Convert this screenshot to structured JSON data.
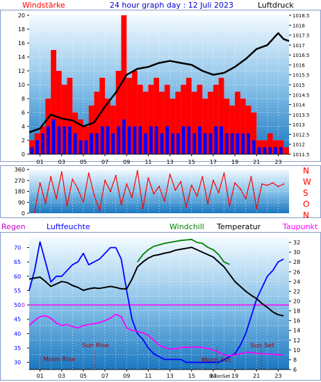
{
  "header": {
    "left_label": "Windstärke",
    "title": "24 hour graph day : 12 Juli 2023",
    "right_label": "Luftdruck"
  },
  "colors": {
    "red": "#ff0000",
    "blue": "#0000ff",
    "black": "#000000",
    "green": "#008000",
    "magenta": "#ff00ff",
    "panel_top": "#f2faff",
    "panel_bottom": "#1a77c0",
    "frame": "#8899cc"
  },
  "bottom_header": {
    "regen": "Regen",
    "luftfeuchte": "Luftfeuchte",
    "windchill": "Windchill",
    "temperatur": "Temperatur",
    "taupunkt": "Taupunkt"
  },
  "direction_labels": [
    "N",
    "W",
    "S",
    "O",
    "N"
  ],
  "annotations": {
    "moon_rise": "Moon Rise",
    "sun_rise": "Sun Rise",
    "moon_set": "Moon Set",
    "sun_set": "Sun Set",
    "axis_moonset": "MoonSet"
  },
  "chart_data": [
    {
      "type": "bar",
      "panel": "wind",
      "title": "24 hour graph day : 12 Juli 2023",
      "x_ticks": [
        "01",
        "03",
        "05",
        "07",
        "09",
        "11",
        "13",
        "15",
        "17",
        "19",
        "21",
        "23"
      ],
      "xlim": [
        0,
        24
      ],
      "ylim_left": [
        0,
        20
      ],
      "y_ticks_left": [
        0,
        2,
        4,
        6,
        8,
        10,
        12,
        14,
        16,
        18,
        20
      ],
      "ylim_right": [
        1011.5,
        1018.5
      ],
      "y_ticks_right": [
        "1011.5",
        "1012",
        "1012.5",
        "1013",
        "1013.5",
        "1014",
        "1014.5",
        "1015",
        "1015.5",
        "1016",
        "1016.5",
        "1017",
        "1017.5",
        "1018",
        "1018.5"
      ],
      "series": [
        {
          "name": "Windstärke",
          "color": "#ff0000",
          "role": "gust",
          "x": [
            0,
            0.5,
            1,
            1.5,
            2,
            2.5,
            3,
            3.5,
            4,
            4.5,
            5,
            5.5,
            6,
            6.5,
            7,
            7.5,
            8,
            8.5,
            9,
            9.5,
            10,
            10.5,
            11,
            11.5,
            12,
            12.5,
            13,
            13.5,
            14,
            14.5,
            15,
            15.5,
            16,
            16.5,
            17,
            17.5,
            18,
            18.5,
            19,
            19.5,
            20,
            20.5,
            21,
            21.5,
            22,
            22.5,
            23,
            23.5
          ],
          "values": [
            2,
            3,
            4,
            8,
            15,
            12,
            10,
            11,
            6,
            5,
            4,
            7,
            9,
            11,
            8,
            7,
            12,
            20,
            11,
            12,
            10,
            9,
            10,
            11,
            9,
            10,
            8,
            9,
            10,
            11,
            9,
            10,
            8,
            9,
            10,
            11,
            8,
            7,
            9,
            8,
            7,
            6,
            2,
            2,
            3,
            2,
            2,
            1
          ]
        },
        {
          "name": "Wind",
          "color": "#0000ff",
          "role": "mean",
          "x": [
            0,
            0.5,
            1,
            1.5,
            2,
            2.5,
            3,
            3.5,
            4,
            4.5,
            5,
            5.5,
            6,
            6.5,
            7,
            7.5,
            8,
            8.5,
            9,
            9.5,
            10,
            10.5,
            11,
            11.5,
            12,
            12.5,
            13,
            13.5,
            14,
            14.5,
            15,
            15.5,
            16,
            16.5,
            17,
            17.5,
            18,
            18.5,
            19,
            19.5,
            20,
            20.5,
            21,
            21.5,
            22,
            22.5,
            23,
            23.5
          ],
          "values": [
            1,
            2,
            3,
            4,
            5,
            4,
            4,
            4,
            3,
            2,
            2,
            3,
            3,
            4,
            4,
            3,
            4,
            5,
            4,
            4,
            4,
            3,
            4,
            4,
            3,
            4,
            3,
            3,
            4,
            4,
            3,
            4,
            3,
            3,
            4,
            4,
            3,
            3,
            3,
            3,
            3,
            2,
            1,
            1,
            1,
            1,
            1,
            0
          ]
        },
        {
          "name": "Luftdruck",
          "color": "#000000",
          "role": "pressure",
          "x": [
            0,
            1,
            2,
            3,
            4,
            5,
            6,
            7,
            8,
            9,
            10,
            11,
            12,
            13,
            14,
            15,
            16,
            17,
            18,
            19,
            20,
            21,
            22,
            23,
            23.5,
            24
          ],
          "values": [
            1012.6,
            1012.8,
            1013.5,
            1013.3,
            1013.2,
            1012.9,
            1013.1,
            1013.9,
            1014.6,
            1015.5,
            1015.8,
            1015.9,
            1016.1,
            1016.2,
            1016.1,
            1016.0,
            1015.7,
            1015.5,
            1015.6,
            1015.9,
            1016.3,
            1016.8,
            1017.0,
            1017.6,
            1017.3,
            1017.2
          ]
        }
      ]
    },
    {
      "type": "line",
      "panel": "direction",
      "x_ticks": [],
      "ylim": [
        0,
        360
      ],
      "y_ticks": [
        0,
        90,
        180,
        270,
        360
      ],
      "series": [
        {
          "name": "Windrichtung",
          "color": "#ff0000",
          "x": [
            0.5,
            1,
            1.5,
            2,
            2.5,
            3,
            3.5,
            4,
            4.5,
            5,
            5.5,
            6,
            6.5,
            7,
            7.5,
            8,
            8.5,
            9,
            9.5,
            10,
            10.5,
            11,
            11.5,
            12,
            12.5,
            13,
            13.5,
            14,
            14.5,
            15,
            15.5,
            16,
            16.5,
            17,
            17.5,
            18,
            18.5,
            19,
            19.5,
            20,
            20.5,
            21,
            21.5,
            22,
            22.5,
            23,
            23.5
          ],
          "values": [
            10,
            250,
            80,
            300,
            120,
            340,
            60,
            280,
            200,
            90,
            330,
            150,
            20,
            270,
            180,
            310,
            70,
            240,
            130,
            350,
            40,
            290,
            160,
            220,
            100,
            320,
            190,
            260,
            50,
            230,
            140,
            300,
            80,
            270,
            170,
            330,
            60,
            250,
            200,
            120,
            300,
            40,
            240,
            230,
            250,
            220,
            240
          ]
        }
      ]
    },
    {
      "type": "line",
      "panel": "temperature_humidity",
      "x_ticks": [
        "01",
        "03",
        "05",
        "07",
        "09",
        "11",
        "13",
        "15",
        "17",
        "19",
        "21",
        "23"
      ],
      "ylim_left": [
        27.5,
        73.5
      ],
      "y_ticks_left": [
        30,
        35,
        40,
        45,
        50,
        55,
        60,
        65,
        70
      ],
      "ylim_right": [
        6,
        33
      ],
      "y_ticks_right": [
        6,
        8,
        10,
        12,
        14,
        16,
        18,
        20,
        22,
        24,
        26,
        28,
        30,
        32
      ],
      "rain_mark": "0",
      "series": [
        {
          "name": "Luftfeuchte",
          "color": "#0000ff",
          "axis": "left",
          "x": [
            0,
            0.5,
            1,
            1.5,
            2,
            2.5,
            3,
            3.5,
            4,
            4.5,
            5,
            5.5,
            6,
            6.5,
            7,
            7.5,
            8,
            8.5,
            9,
            9.5,
            10,
            10.5,
            11,
            11.5,
            12,
            12.5,
            13,
            13.5,
            14,
            14.5,
            15,
            15.5,
            16,
            16.5,
            17,
            17.5,
            18,
            18.5,
            19,
            19.5,
            20,
            20.5,
            21,
            21.5,
            22,
            22.5,
            23,
            23.5
          ],
          "values": [
            55,
            62,
            72,
            65,
            58,
            60,
            60,
            62,
            64,
            65,
            68,
            64,
            65,
            66,
            68,
            70,
            70,
            66,
            55,
            45,
            40,
            38,
            35,
            33,
            32,
            31,
            31,
            31,
            31,
            30,
            30,
            30,
            30,
            30,
            30,
            30,
            31,
            32,
            33,
            36,
            40,
            46,
            52,
            56,
            60,
            62,
            65,
            66
          ]
        },
        {
          "name": "Temperatur",
          "color": "#000000",
          "axis": "right",
          "x": [
            0,
            0.5,
            1,
            1.5,
            2,
            2.5,
            3,
            3.5,
            4,
            4.5,
            5,
            5.5,
            6,
            6.5,
            7,
            7.5,
            8,
            8.5,
            9,
            9.5,
            10,
            10.5,
            11,
            11.5,
            12,
            12.5,
            13,
            13.5,
            14,
            14.5,
            15,
            15.5,
            16,
            16.5,
            17,
            17.5,
            18,
            18.5,
            19,
            19.5,
            20,
            20.5,
            21,
            21.5,
            22,
            22.5,
            23,
            23.5
          ],
          "values": [
            24.5,
            24.7,
            24.9,
            24.0,
            23.0,
            23.5,
            24.0,
            23.8,
            23.2,
            22.8,
            22.2,
            22.5,
            22.7,
            22.6,
            22.8,
            23.0,
            22.8,
            22.5,
            22.5,
            24.5,
            27.0,
            28.0,
            28.8,
            29.3,
            29.5,
            29.8,
            30.0,
            30.4,
            30.6,
            30.8,
            31.0,
            30.5,
            30.0,
            29.5,
            29.0,
            28.0,
            27.0,
            25.5,
            24.0,
            23.0,
            22.0,
            21.2,
            20.5,
            19.5,
            18.7,
            17.8,
            17.2,
            17.0
          ]
        },
        {
          "name": "Windchill",
          "color": "#008000",
          "axis": "right",
          "x": [
            10,
            10.5,
            11,
            11.5,
            12,
            12.5,
            13,
            13.5,
            14,
            14.5,
            15,
            15.5,
            16,
            16.5,
            17,
            17.5,
            18,
            18.5
          ],
          "values": [
            28.0,
            29.5,
            30.5,
            31.2,
            31.5,
            31.8,
            32.0,
            32.2,
            32.4,
            32.5,
            32.6,
            32.0,
            31.8,
            31.0,
            30.5,
            29.5,
            28.0,
            27.5
          ]
        },
        {
          "name": "Taupunkt",
          "color": "#ff00ff",
          "axis": "right",
          "x": [
            0,
            0.5,
            1,
            1.5,
            2,
            2.5,
            3,
            3.5,
            4,
            4.5,
            5,
            5.5,
            6,
            6.5,
            7,
            7.5,
            8,
            8.5,
            9,
            9.5,
            10,
            10.5,
            11,
            11.5,
            12,
            12.5,
            13,
            13.5,
            14,
            14.5,
            15,
            15.5,
            16,
            16.5,
            17,
            17.5,
            18,
            18.5,
            19,
            19.5,
            20,
            20.5,
            21,
            21.5,
            22,
            22.5,
            23,
            23.5
          ],
          "values": [
            15.0,
            16.0,
            16.8,
            17.0,
            16.5,
            15.5,
            15.0,
            15.2,
            14.8,
            14.5,
            15.0,
            15.2,
            15.4,
            15.6,
            16.0,
            16.5,
            17.3,
            16.8,
            14.5,
            14.0,
            13.8,
            13.5,
            13.0,
            12.0,
            11.0,
            10.5,
            10.2,
            10.2,
            10.5,
            10.5,
            10.6,
            10.6,
            10.5,
            10.3,
            10.0,
            9.5,
            9.0,
            8.8,
            9.0,
            9.2,
            9.5,
            9.5,
            9.3,
            9.2,
            9.2,
            9.1,
            9.0,
            9.0
          ]
        }
      ]
    }
  ]
}
